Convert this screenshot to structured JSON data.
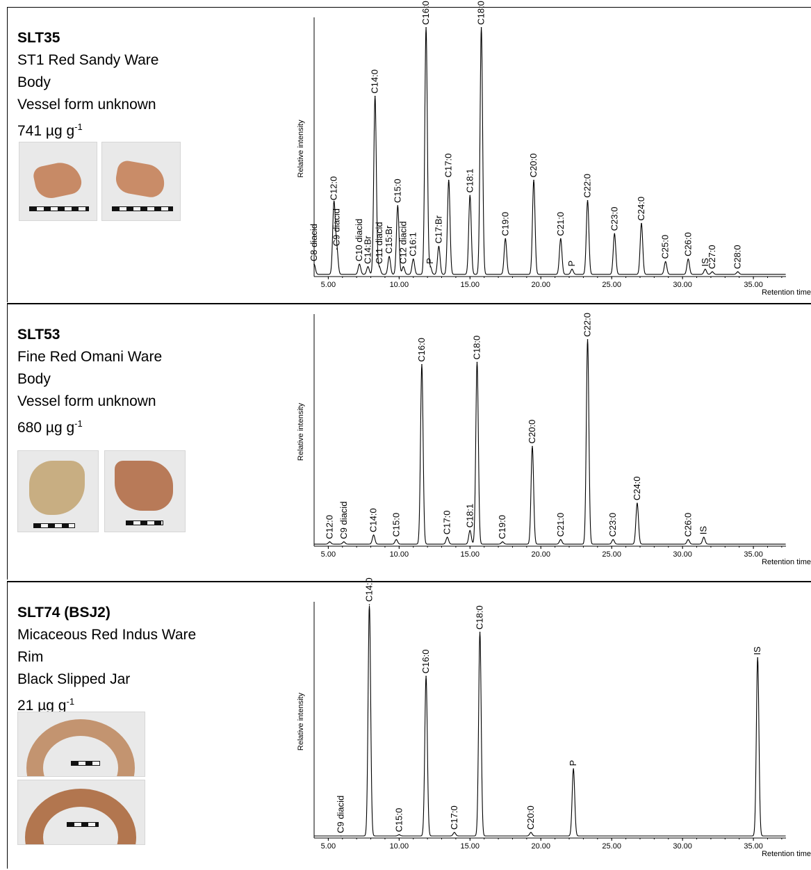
{
  "panels": [
    {
      "sample": "SLT35",
      "ware": "ST1 Red Sandy Ware",
      "part": "Body",
      "vessel": "Vessel form unknown",
      "concentration": "741 µg g",
      "concentration_exp": "-1"
    },
    {
      "sample": "SLT53",
      "ware": "Fine Red Omani Ware",
      "part": "Body",
      "vessel": "Vessel form unknown",
      "concentration": "680 µg g",
      "concentration_exp": "-1"
    },
    {
      "sample": "SLT74 (BSJ2)",
      "ware": "Micaceous Red Indus Ware",
      "part": "Rim",
      "vessel": "Black Slipped Jar",
      "concentration": " 21 µg g",
      "concentration_exp": "-1"
    }
  ],
  "chart_data": [
    {
      "type": "line",
      "ylabel": "Relative intensity",
      "xlabel": "Retention time",
      "xlim": [
        4.0,
        37.3
      ],
      "ylim": [
        0,
        100
      ],
      "xticks": [
        "5.00",
        "10.00",
        "15.00",
        "20.00",
        "25.00",
        "30.00",
        "35.00"
      ],
      "peaks": [
        {
          "label": "C8 diacid",
          "x": 4.0,
          "y": 4
        },
        {
          "label": "C12:0",
          "x": 5.4,
          "y": 28
        },
        {
          "label": "C9 diacid",
          "x": 5.6,
          "y": 10
        },
        {
          "label": "C10 diacid",
          "x": 7.2,
          "y": 4
        },
        {
          "label": "C14:Br",
          "x": 7.8,
          "y": 3
        },
        {
          "label": "C14:0",
          "x": 8.3,
          "y": 70
        },
        {
          "label": "C11 diacid",
          "x": 8.6,
          "y": 3
        },
        {
          "label": "C15:Br",
          "x": 9.3,
          "y": 7
        },
        {
          "label": "C15:0",
          "x": 9.9,
          "y": 27
        },
        {
          "label": "C12 diacid",
          "x": 10.3,
          "y": 3
        },
        {
          "label": "C16:1",
          "x": 11.0,
          "y": 6
        },
        {
          "label": "C16:0",
          "x": 11.9,
          "y": 97
        },
        {
          "label": "P",
          "x": 12.2,
          "y": 3
        },
        {
          "label": "C17:Br",
          "x": 12.8,
          "y": 11
        },
        {
          "label": "C17:0",
          "x": 13.5,
          "y": 37
        },
        {
          "label": "C18:1",
          "x": 15.0,
          "y": 31
        },
        {
          "label": "C18:0",
          "x": 15.8,
          "y": 97
        },
        {
          "label": "C19:0",
          "x": 17.5,
          "y": 14
        },
        {
          "label": "C20:0",
          "x": 19.5,
          "y": 37
        },
        {
          "label": "C21:0",
          "x": 21.4,
          "y": 14
        },
        {
          "label": "P",
          "x": 22.2,
          "y": 2
        },
        {
          "label": "C22:0",
          "x": 23.3,
          "y": 29
        },
        {
          "label": "C23:0",
          "x": 25.2,
          "y": 16
        },
        {
          "label": "C24:0",
          "x": 27.1,
          "y": 20
        },
        {
          "label": "C25:0",
          "x": 28.8,
          "y": 5
        },
        {
          "label": "C26:0",
          "x": 30.4,
          "y": 6
        },
        {
          "label": "IS",
          "x": 31.6,
          "y": 2
        },
        {
          "label": "C27:0",
          "x": 32.1,
          "y": 1
        },
        {
          "label": "C28:0",
          "x": 33.9,
          "y": 1
        }
      ]
    },
    {
      "type": "line",
      "ylabel": "Relative intensity",
      "xlabel": "Retention time",
      "xlim": [
        4.0,
        37.3
      ],
      "ylim": [
        0,
        100
      ],
      "xticks": [
        "5.00",
        "10.00",
        "15.00",
        "20.00",
        "25.00",
        "30.00",
        "35.00"
      ],
      "peaks": [
        {
          "label": "C12:0",
          "x": 5.1,
          "y": 1
        },
        {
          "label": "C9 diacid",
          "x": 6.1,
          "y": 1
        },
        {
          "label": "C14:0",
          "x": 8.2,
          "y": 4
        },
        {
          "label": "C15:0",
          "x": 9.8,
          "y": 2
        },
        {
          "label": "C16:0",
          "x": 11.6,
          "y": 79
        },
        {
          "label": "C17:0",
          "x": 13.4,
          "y": 3
        },
        {
          "label": "C18:1",
          "x": 15.0,
          "y": 6
        },
        {
          "label": "C18:0",
          "x": 15.5,
          "y": 80
        },
        {
          "label": "C19:0",
          "x": 17.3,
          "y": 1
        },
        {
          "label": "C20:0",
          "x": 19.4,
          "y": 43
        },
        {
          "label": "C21:0",
          "x": 21.4,
          "y": 2
        },
        {
          "label": "C22:0",
          "x": 23.3,
          "y": 90
        },
        {
          "label": "C23:0",
          "x": 25.1,
          "y": 2
        },
        {
          "label": "C24:0",
          "x": 26.8,
          "y": 18
        },
        {
          "label": "C26:0",
          "x": 30.4,
          "y": 2
        },
        {
          "label": "IS",
          "x": 31.5,
          "y": 3
        }
      ]
    },
    {
      "type": "line",
      "ylabel": "Relative intensity",
      "xlabel": "Retention time",
      "xlim": [
        4.0,
        37.3
      ],
      "ylim": [
        0,
        100
      ],
      "xticks": [
        "5.00",
        "10.00",
        "15.00",
        "20.00",
        "25.00",
        "30.00",
        "35.00"
      ],
      "peaks": [
        {
          "label": "C9 diacid",
          "x": 5.9,
          "y": 0
        },
        {
          "label": "C14:0",
          "x": 7.9,
          "y": 100
        },
        {
          "label": "C15:0",
          "x": 10.0,
          "y": 0.5
        },
        {
          "label": "C16:0",
          "x": 11.9,
          "y": 69
        },
        {
          "label": "C17:0",
          "x": 13.9,
          "y": 1.5
        },
        {
          "label": "C18:0",
          "x": 15.7,
          "y": 88
        },
        {
          "label": "C20:0",
          "x": 19.3,
          "y": 1.5
        },
        {
          "label": "P",
          "x": 22.3,
          "y": 29
        },
        {
          "label": "IS",
          "x": 35.3,
          "y": 77
        }
      ]
    }
  ]
}
